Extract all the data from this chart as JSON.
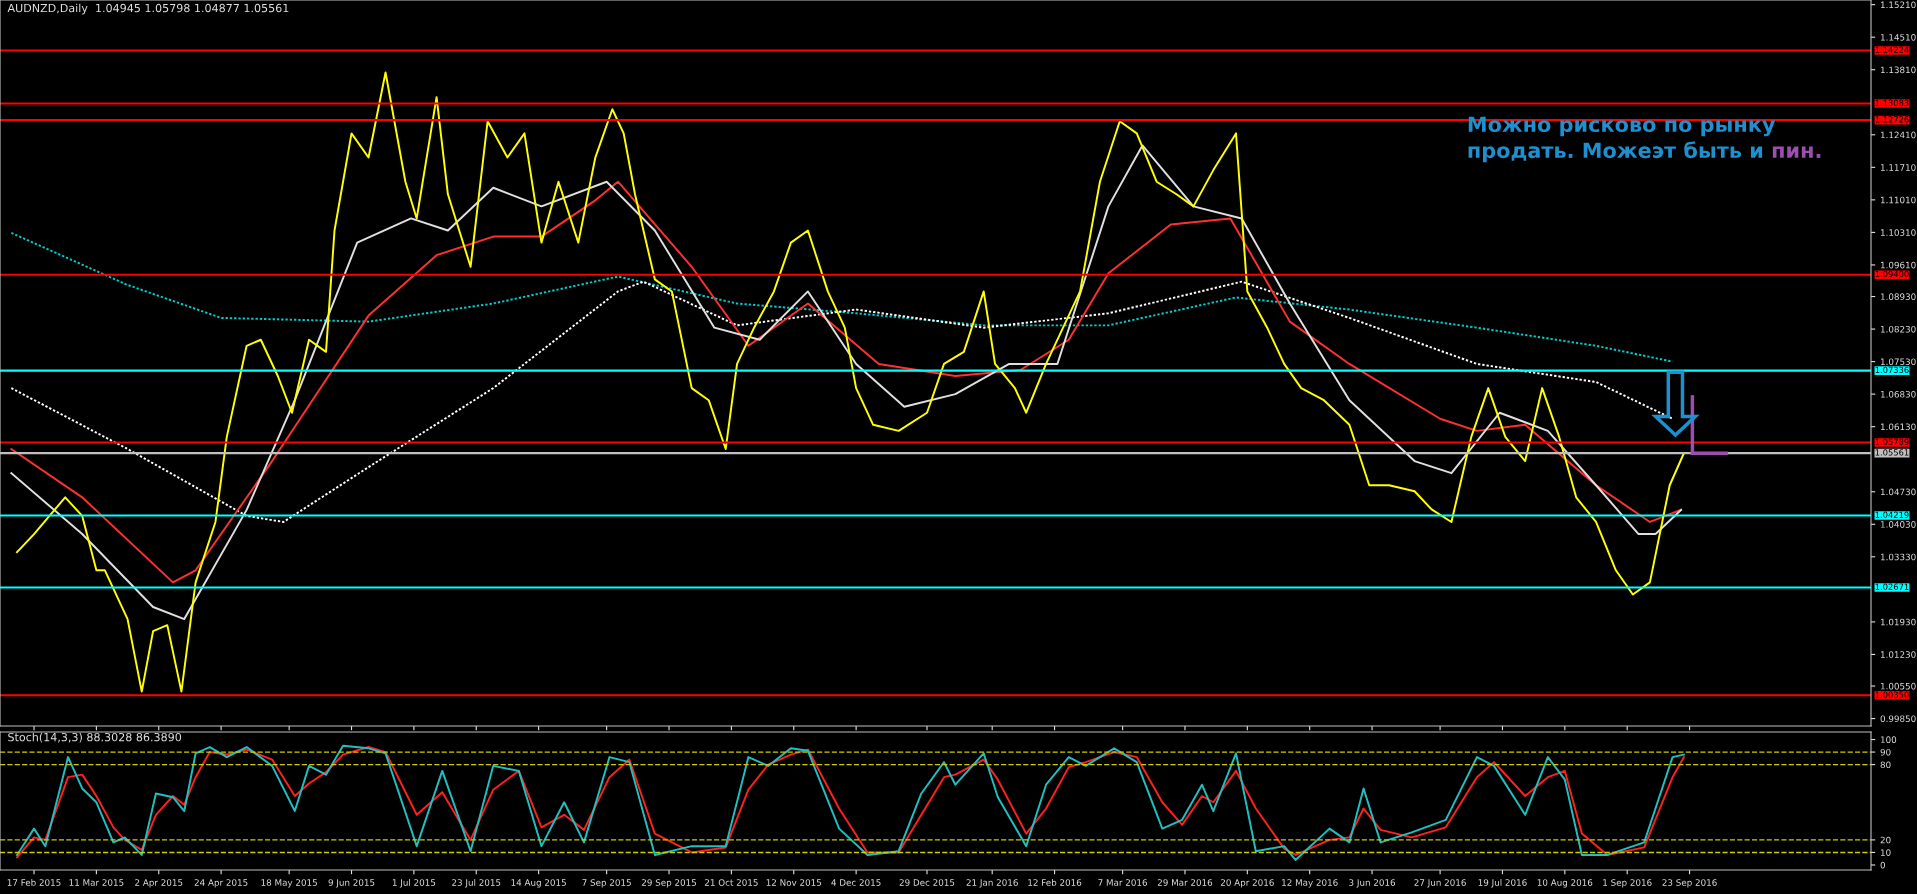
{
  "chart_data": [
    {
      "type": "line",
      "title": "AUDNZD,Daily  1.04945 1.05798 1.04877 1.05561",
      "annotations": [
        "Можно рисково по рынку",
        "продать. Можеэт быть и ",
        "пин."
      ],
      "xlim": [
        "2015-02-05",
        "2016-11-26"
      ],
      "ylim": [
        0.9969,
        1.1531
      ],
      "tick_labels": "y",
      "xticks": [
        {
          "value": "2015-02-17",
          "label": null
        },
        {
          "value": "2015-03-11",
          "label": null
        },
        {
          "value": "2015-04-02",
          "label": null
        },
        {
          "value": "2015-04-24",
          "label": null
        },
        {
          "value": "2015-05-18",
          "label": null
        },
        {
          "value": "2015-06-09",
          "label": null
        },
        {
          "value": "2015-07-01",
          "label": null
        },
        {
          "value": "2015-07-23",
          "label": null
        },
        {
          "value": "2015-08-14",
          "label": null
        },
        {
          "value": "2015-09-07",
          "label": null
        },
        {
          "value": "2015-09-29",
          "label": null
        },
        {
          "value": "2015-10-21",
          "label": null
        },
        {
          "value": "2015-11-12",
          "label": null
        },
        {
          "value": "2015-12-04",
          "label": null
        },
        {
          "value": "2015-12-29",
          "label": null
        },
        {
          "value": "2016-01-21",
          "label": null
        },
        {
          "value": "2016-02-12",
          "label": null
        },
        {
          "value": "2016-03-07",
          "label": null
        },
        {
          "value": "2016-03-29",
          "label": null
        },
        {
          "value": "2016-04-20",
          "label": null
        },
        {
          "value": "2016-05-12",
          "label": null
        },
        {
          "value": "2016-06-03",
          "label": null
        },
        {
          "value": "2016-06-27",
          "label": null
        },
        {
          "value": "2016-07-19",
          "label": null
        },
        {
          "value": "2016-08-10",
          "label": null
        },
        {
          "value": "2016-09-01",
          "label": null
        },
        {
          "value": "2016-09-23",
          "label": null
        }
      ],
      "yticks": [
        {
          "value": 1.1521,
          "label": "1.15210"
        },
        {
          "value": 1.1451,
          "label": "1.14510"
        },
        {
          "value": 1.1381,
          "label": "1.13810"
        },
        {
          "value": 1.1241,
          "label": "1.12410"
        },
        {
          "value": 1.1171,
          "label": "1.11710"
        },
        {
          "value": 1.1101,
          "label": "1.11010"
        },
        {
          "value": 1.1031,
          "label": "1.10310"
        },
        {
          "value": 1.0961,
          "label": "1.09610"
        },
        {
          "value": 1.0893,
          "label": "1.08930"
        },
        {
          "value": 1.0823,
          "label": "1.08230"
        },
        {
          "value": 1.0753,
          "label": "1.07530"
        },
        {
          "value": 1.0683,
          "label": "1.06830"
        },
        {
          "value": 1.0613,
          "label": "1.06130"
        },
        {
          "value": 1.0473,
          "label": "1.04730"
        },
        {
          "value": 1.0403,
          "label": "1.04030"
        },
        {
          "value": 1.0333,
          "label": "1.03330"
        },
        {
          "value": 1.0193,
          "label": "1.01930"
        },
        {
          "value": 1.0123,
          "label": "1.01230"
        },
        {
          "value": 1.0055,
          "label": "1.00550"
        },
        {
          "value": 0.9985,
          "label": "0.99850"
        }
      ],
      "ref_lines": [
        {
          "axis": "y",
          "value": 1.14224,
          "label": "1.14224",
          "color": "#ff0000"
        },
        {
          "axis": "y",
          "value": 1.13083,
          "label": "1.13083",
          "color": "#ff0000"
        },
        {
          "axis": "y",
          "value": 1.12726,
          "label": "1.12726",
          "color": "#ff0000"
        },
        {
          "axis": "y",
          "value": 1.094,
          "label": "1.09400",
          "color": "#ff0000"
        },
        {
          "axis": "y",
          "value": 1.07336,
          "label": "1.07336",
          "color": "#00ffff"
        },
        {
          "axis": "y",
          "value": 1.05789,
          "label": "1.05789",
          "color": "#ff0000"
        },
        {
          "axis": "y",
          "value": 1.05561,
          "label": "1.05561",
          "color": "#c0c0c0"
        },
        {
          "axis": "y",
          "value": 1.04219,
          "label": "1.04219",
          "color": "#00ffff"
        },
        {
          "axis": "y",
          "value": 1.02671,
          "label": "1.02671",
          "color": "#00ffff"
        },
        {
          "axis": "y",
          "value": 1.0035,
          "label": "1.00350",
          "color": "#ff0000"
        }
      ],
      "series": [
        {
          "color": "#00cccc",
          "line_style": "dotted",
          "x": [
            "2015-02-09",
            "2015-03-22",
            "2015-04-24",
            "2015-06-15",
            "2015-07-29",
            "2015-09-11",
            "2015-10-23",
            "2015-12-04",
            "2016-01-18",
            "2016-03-02",
            "2016-04-16",
            "2016-05-26",
            "2016-07-10",
            "2016-08-21",
            "2016-09-17"
          ],
          "values": [
            1.103,
            1.0918,
            1.0847,
            1.0839,
            1.0878,
            1.0936,
            1.0878,
            1.0857,
            1.0831,
            1.0831,
            1.0891,
            1.0865,
            1.0826,
            1.0787,
            1.0753
          ]
        },
        {
          "color": "#ffffff",
          "line_style": "dotted",
          "x": [
            "2015-02-09",
            "2015-03-22",
            "2015-05-03",
            "2015-05-16",
            "2015-06-15",
            "2015-07-29",
            "2015-09-11",
            "2015-09-20",
            "2015-10-23",
            "2015-12-04",
            "2016-01-18",
            "2016-03-02",
            "2016-04-18",
            "2016-05-26",
            "2016-07-10",
            "2016-08-21",
            "2016-09-17"
          ],
          "values": [
            1.0696,
            1.0565,
            1.0421,
            1.0408,
            1.0526,
            1.0696,
            1.0904,
            1.0925,
            1.0831,
            1.0865,
            1.0826,
            1.0857,
            1.0925,
            1.0847,
            1.0748,
            1.0709,
            1.063
          ]
        },
        {
          "color": "#ff3030",
          "line_style": "solid",
          "x": [
            "2015-02-09",
            "2015-03-06",
            "2015-04-07",
            "2015-04-15",
            "2015-05-12",
            "2015-06-15",
            "2015-07-09",
            "2015-07-29",
            "2015-08-15",
            "2015-09-03",
            "2015-09-11",
            "2015-10-07",
            "2015-10-27",
            "2015-11-17",
            "2015-12-12",
            "2016-01-08",
            "2016-01-31",
            "2016-02-17",
            "2016-03-02",
            "2016-03-24",
            "2016-04-14",
            "2016-05-05",
            "2016-05-26",
            "2016-06-27",
            "2016-07-10",
            "2016-07-27",
            "2016-08-21",
            "2016-09-09",
            "2016-09-20"
          ],
          "values": [
            1.0565,
            1.0461,
            1.0278,
            1.0304,
            1.0539,
            1.0852,
            1.0982,
            1.1022,
            1.1022,
            1.11,
            1.114,
            1.0957,
            1.0787,
            1.0878,
            1.0748,
            1.0722,
            1.0735,
            1.08,
            1.0943,
            1.1048,
            1.1061,
            1.0839,
            1.0748,
            1.063,
            1.0604,
            1.0617,
            1.0487,
            1.0408,
            1.0434
          ]
        },
        {
          "color": "#e0e0e0",
          "line_style": "solid",
          "x": [
            "2015-02-09",
            "2015-03-06",
            "2015-03-31",
            "2015-04-11",
            "2015-05-03",
            "2015-05-20",
            "2015-06-11",
            "2015-06-30",
            "2015-07-13",
            "2015-07-29",
            "2015-08-15",
            "2015-09-07",
            "2015-09-24",
            "2015-10-15",
            "2015-10-31",
            "2015-11-17",
            "2015-12-04",
            "2015-12-21",
            "2016-01-08",
            "2016-01-27",
            "2016-02-13",
            "2016-03-02",
            "2016-03-14",
            "2016-04-01",
            "2016-04-18",
            "2016-05-05",
            "2016-05-26",
            "2016-06-18",
            "2016-07-01",
            "2016-07-18",
            "2016-08-04",
            "2016-08-21",
            "2016-09-05",
            "2016-09-11",
            "2016-09-20"
          ],
          "values": [
            1.0513,
            1.0382,
            1.0225,
            1.0199,
            1.0434,
            1.067,
            1.1009,
            1.1061,
            1.1035,
            1.1127,
            1.1087,
            1.114,
            1.1035,
            1.0826,
            1.08,
            1.0904,
            1.0748,
            1.0656,
            1.0683,
            1.0748,
            1.0748,
            1.1087,
            1.1218,
            1.1087,
            1.1061,
            1.0878,
            1.067,
            1.0539,
            1.0513,
            1.0643,
            1.0604,
            1.0487,
            1.0382,
            1.0382,
            1.0434
          ]
        },
        {
          "color": "#ffff00",
          "line_style": "solid",
          "x": [
            "2015-02-11",
            "2015-02-17",
            "2015-02-28",
            "2015-03-06",
            "2015-03-11",
            "2015-03-14",
            "2015-03-22",
            "2015-03-27",
            "2015-03-31",
            "2015-04-05",
            "2015-04-10",
            "2015-04-15",
            "2015-04-22",
            "2015-04-26",
            "2015-05-03",
            "2015-05-08",
            "2015-05-14",
            "2015-05-19",
            "2015-05-25",
            "2015-05-31",
            "2015-06-03",
            "2015-06-09",
            "2015-06-15",
            "2015-06-21",
            "2015-06-28",
            "2015-07-02",
            "2015-07-09",
            "2015-07-13",
            "2015-07-21",
            "2015-07-27",
            "2015-08-03",
            "2015-08-09",
            "2015-08-15",
            "2015-08-21",
            "2015-08-28",
            "2015-09-03",
            "2015-09-09",
            "2015-09-13",
            "2015-09-17",
            "2015-09-24",
            "2015-09-30",
            "2015-10-07",
            "2015-10-13",
            "2015-10-19",
            "2015-10-23",
            "2015-10-29",
            "2015-11-05",
            "2015-11-11",
            "2015-11-17",
            "2015-11-24",
            "2015-11-30",
            "2015-12-04",
            "2015-12-10",
            "2015-12-19",
            "2015-12-29",
            "2016-01-04",
            "2016-01-11",
            "2016-01-18",
            "2016-01-22",
            "2016-01-29",
            "2016-02-02",
            "2016-02-09",
            "2016-02-15",
            "2016-02-21",
            "2016-02-28",
            "2016-03-06",
            "2016-03-12",
            "2016-03-19",
            "2016-03-26",
            "2016-04-01",
            "2016-04-08",
            "2016-04-16",
            "2016-04-20",
            "2016-04-27",
            "2016-05-03",
            "2016-05-09",
            "2016-05-17",
            "2016-05-26",
            "2016-06-02",
            "2016-06-09",
            "2016-06-18",
            "2016-06-24",
            "2016-07-01",
            "2016-07-08",
            "2016-07-14",
            "2016-07-20",
            "2016-07-27",
            "2016-08-02",
            "2016-08-08",
            "2016-08-14",
            "2016-08-21",
            "2016-08-28",
            "2016-09-03",
            "2016-09-09",
            "2016-09-16",
            "2016-09-21"
          ],
          "values": [
            1.0343,
            1.0382,
            1.0461,
            1.0421,
            1.0304,
            1.0304,
            1.0199,
            1.0043,
            1.0173,
            1.0186,
            1.0043,
            1.0278,
            1.0408,
            1.0591,
            1.0787,
            1.08,
            1.0722,
            1.0643,
            1.08,
            1.0774,
            1.1035,
            1.1244,
            1.1192,
            1.1375,
            1.114,
            1.1061,
            1.1322,
            1.1113,
            1.0957,
            1.127,
            1.1192,
            1.1244,
            1.1009,
            1.114,
            1.1009,
            1.1192,
            1.1296,
            1.1244,
            1.1113,
            1.093,
            1.0904,
            1.0696,
            1.067,
            1.0565,
            1.0748,
            1.0826,
            1.0904,
            1.1009,
            1.1035,
            1.0904,
            1.0826,
            1.0696,
            1.0617,
            1.0604,
            1.0643,
            1.0748,
            1.0774,
            1.0904,
            1.0748,
            1.0696,
            1.0643,
            1.0748,
            1.0826,
            1.0904,
            1.114,
            1.127,
            1.1244,
            1.114,
            1.1113,
            1.1087,
            1.1165,
            1.1244,
            1.0904,
            1.0826,
            1.0748,
            1.0696,
            1.067,
            1.0617,
            1.0487,
            1.0487,
            1.0474,
            1.0435,
            1.0408,
            1.0591,
            1.0696,
            1.0591,
            1.0539,
            1.0696,
            1.0591,
            1.0461,
            1.0408,
            1.0304,
            1.0252,
            1.0278,
            1.0487,
            1.05561
          ]
        }
      ]
    },
    {
      "type": "line",
      "title": "Stoch(14,3,3) 88.3028 86.3890",
      "xlim": [
        "2015-02-05",
        "2016-11-26"
      ],
      "ylim": [
        -4,
        106
      ],
      "xticks": [
        {
          "value": "2015-02-17",
          "label": "17 Feb 2015"
        },
        {
          "value": "2015-03-11",
          "label": "11 Mar 2015"
        },
        {
          "value": "2015-04-02",
          "label": "2 Apr 2015"
        },
        {
          "value": "2015-04-24",
          "label": "24 Apr 2015"
        },
        {
          "value": "2015-05-18",
          "label": "18 May 2015"
        },
        {
          "value": "2015-06-09",
          "label": "9 Jun 2015"
        },
        {
          "value": "2015-07-01",
          "label": "1 Jul 2015"
        },
        {
          "value": "2015-07-23",
          "label": "23 Jul 2015"
        },
        {
          "value": "2015-08-14",
          "label": "14 Aug 2015"
        },
        {
          "value": "2015-09-07",
          "label": "7 Sep 2015"
        },
        {
          "value": "2015-09-29",
          "label": "29 Sep 2015"
        },
        {
          "value": "2015-10-21",
          "label": "21 Oct 2015"
        },
        {
          "value": "2015-11-12",
          "label": "12 Nov 2015"
        },
        {
          "value": "2015-12-04",
          "label": "4 Dec 2015"
        },
        {
          "value": "2015-12-29",
          "label": "29 Dec 2015"
        },
        {
          "value": "2016-01-21",
          "label": "21 Jan 2016"
        },
        {
          "value": "2016-02-12",
          "label": "12 Feb 2016"
        },
        {
          "value": "2016-03-07",
          "label": "7 Mar 2016"
        },
        {
          "value": "2016-03-29",
          "label": "29 Mar 2016"
        },
        {
          "value": "2016-04-20",
          "label": "20 Apr 2016"
        },
        {
          "value": "2016-05-12",
          "label": "12 May 2016"
        },
        {
          "value": "2016-06-03",
          "label": "3 Jun 2016"
        },
        {
          "value": "2016-06-27",
          "label": "27 Jun 2016"
        },
        {
          "value": "2016-07-19",
          "label": "19 Jul 2016"
        },
        {
          "value": "2016-08-10",
          "label": "10 Aug 2016"
        },
        {
          "value": "2016-09-01",
          "label": "1 Sep 2016"
        },
        {
          "value": "2016-09-23",
          "label": "23 Sep 2016"
        }
      ],
      "yticks": [
        0,
        10,
        20,
        80,
        90,
        100
      ],
      "ref_lines": [
        {
          "axis": "y",
          "value": 10,
          "color": "#cccc00",
          "line_style": "dashed"
        },
        {
          "axis": "y",
          "value": 20,
          "color": "#cccc00",
          "line_style": "dashed"
        },
        {
          "axis": "y",
          "value": 80,
          "color": "#cccc00",
          "line_style": "dashed"
        },
        {
          "axis": "y",
          "value": 90,
          "color": "#cccc00",
          "line_style": "dashed"
        }
      ],
      "series": [
        {
          "color": "#ff2020",
          "line_style": "solid",
          "x": [
            "2015-02-11",
            "2015-02-17",
            "2015-02-21",
            "2015-03-01",
            "2015-03-06",
            "2015-03-11",
            "2015-03-17",
            "2015-03-21",
            "2015-03-27",
            "2015-04-01",
            "2015-04-07",
            "2015-04-11",
            "2015-04-15",
            "2015-04-20",
            "2015-04-26",
            "2015-05-03",
            "2015-05-12",
            "2015-05-20",
            "2015-05-25",
            "2015-05-31",
            "2015-06-06",
            "2015-06-15",
            "2015-06-21",
            "2015-07-02",
            "2015-07-11",
            "2015-07-21",
            "2015-07-29",
            "2015-08-07",
            "2015-08-15",
            "2015-08-23",
            "2015-08-30",
            "2015-09-08",
            "2015-09-15",
            "2015-09-24",
            "2015-10-07",
            "2015-10-19",
            "2015-10-27",
            "2015-11-03",
            "2015-11-11",
            "2015-11-17",
            "2015-11-28",
            "2015-12-08",
            "2015-12-19",
            "2015-12-27",
            "2016-01-04",
            "2016-01-08",
            "2016-01-18",
            "2016-01-23",
            "2016-02-02",
            "2016-02-09",
            "2016-02-17",
            "2016-02-23",
            "2016-03-04",
            "2016-03-12",
            "2016-03-21",
            "2016-03-28",
            "2016-04-04",
            "2016-04-08",
            "2016-04-16",
            "2016-04-23",
            "2016-05-03",
            "2016-05-07",
            "2016-05-19",
            "2016-05-26",
            "2016-05-31",
            "2016-06-06",
            "2016-06-17",
            "2016-06-29",
            "2016-07-10",
            "2016-07-16",
            "2016-07-27",
            "2016-08-04",
            "2016-08-10",
            "2016-08-16",
            "2016-08-25",
            "2016-09-07",
            "2016-09-17",
            "2016-09-21"
          ],
          "values": [
            6,
            22,
            20,
            70,
            72,
            55,
            30,
            20,
            12,
            40,
            55,
            48,
            70,
            90,
            88,
            92,
            84,
            55,
            65,
            74,
            88,
            94,
            90,
            40,
            58,
            20,
            60,
            75,
            30,
            40,
            28,
            70,
            84,
            25,
            10,
            14,
            60,
            80,
            88,
            92,
            45,
            10,
            10,
            40,
            70,
            72,
            84,
            68,
            25,
            45,
            78,
            82,
            90,
            86,
            50,
            32,
            55,
            50,
            75,
            45,
            13,
            8,
            20,
            22,
            45,
            28,
            22,
            30,
            70,
            82,
            55,
            70,
            75,
            25,
            8,
            14,
            70,
            86
          ]
        },
        {
          "color": "#20c0c0",
          "line_style": "solid",
          "x": [
            "2015-02-11",
            "2015-02-17",
            "2015-02-21",
            "2015-03-01",
            "2015-03-06",
            "2015-03-11",
            "2015-03-17",
            "2015-03-21",
            "2015-03-27",
            "2015-04-01",
            "2015-04-07",
            "2015-04-11",
            "2015-04-15",
            "2015-04-20",
            "2015-04-26",
            "2015-05-03",
            "2015-05-12",
            "2015-05-20",
            "2015-05-25",
            "2015-05-31",
            "2015-06-06",
            "2015-06-15",
            "2015-06-21",
            "2015-07-02",
            "2015-07-11",
            "2015-07-21",
            "2015-07-29",
            "2015-08-07",
            "2015-08-15",
            "2015-08-23",
            "2015-08-30",
            "2015-09-08",
            "2015-09-15",
            "2015-09-24",
            "2015-10-07",
            "2015-10-19",
            "2015-10-27",
            "2015-11-03",
            "2015-11-11",
            "2015-11-17",
            "2015-11-28",
            "2015-12-08",
            "2015-12-19",
            "2015-12-27",
            "2016-01-04",
            "2016-01-08",
            "2016-01-18",
            "2016-01-23",
            "2016-02-02",
            "2016-02-09",
            "2016-02-17",
            "2016-02-23",
            "2016-03-04",
            "2016-03-12",
            "2016-03-21",
            "2016-03-28",
            "2016-04-04",
            "2016-04-08",
            "2016-04-16",
            "2016-04-23",
            "2016-05-03",
            "2016-05-07",
            "2016-05-19",
            "2016-05-26",
            "2016-05-31",
            "2016-06-06",
            "2016-06-17",
            "2016-06-29",
            "2016-07-10",
            "2016-07-16",
            "2016-07-27",
            "2016-08-04",
            "2016-08-10",
            "2016-08-16",
            "2016-08-25",
            "2016-09-07",
            "2016-09-17",
            "2016-09-21"
          ],
          "values": [
            8,
            29,
            15,
            86,
            61,
            50,
            18,
            22,
            8,
            57,
            54,
            43,
            89,
            94,
            86,
            94,
            79,
            43,
            79,
            72,
            95,
            93,
            89,
            15,
            75,
            11,
            79,
            75,
            15,
            50,
            18,
            86,
            82,
            8,
            15,
            15,
            86,
            79,
            93,
            91,
            29,
            8,
            11,
            57,
            82,
            64,
            89,
            54,
            15,
            64,
            86,
            79,
            93,
            82,
            29,
            36,
            64,
            43,
            89,
            11,
            15,
            4,
            29,
            18,
            61,
            18,
            26,
            36,
            86,
            79,
            40,
            86,
            68,
            8,
            8,
            18,
            86,
            88
          ]
        }
      ]
    }
  ]
}
